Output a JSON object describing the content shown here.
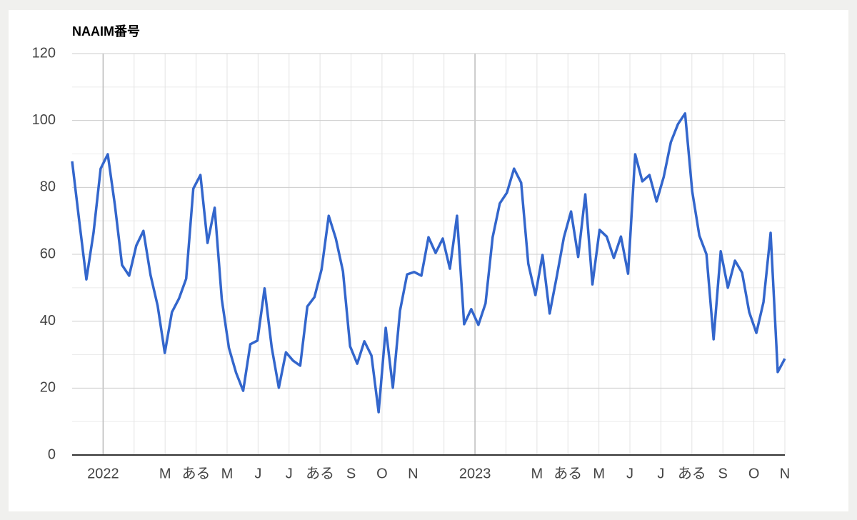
{
  "chart_data": {
    "type": "line",
    "title": "NAAIM番号",
    "x_labels": [
      "2022",
      null,
      "M",
      "ある",
      "M",
      "J",
      "J",
      "ある",
      "S",
      "O",
      "N",
      null,
      "2023",
      null,
      "M",
      "ある",
      "M",
      "J",
      "J",
      "ある",
      "S",
      "O",
      "N"
    ],
    "series": [
      {
        "name": "NAAIM",
        "color": "#3366cc",
        "values": [
          87.8,
          69.9,
          52.5,
          66.4,
          85.6,
          89.9,
          74.7,
          56.8,
          53.6,
          62.6,
          67.0,
          53.8,
          44.6,
          30.5,
          42.7,
          46.8,
          52.7,
          79.6,
          83.7,
          63.4,
          73.9,
          46.5,
          32.0,
          24.6,
          19.2,
          33.1,
          34.2,
          49.8,
          32.2,
          20.1,
          30.7,
          28.2,
          26.7,
          44.4,
          47.2,
          55.5,
          71.5,
          64.7,
          54.9,
          32.5,
          27.3,
          34.0,
          29.7,
          12.8,
          38.0,
          20.1,
          43.1,
          54.0,
          54.7,
          53.6,
          65.1,
          60.4,
          64.7,
          55.7,
          71.5,
          39.1,
          43.6,
          38.9,
          45.3,
          65.1,
          75.2,
          78.4,
          85.6,
          81.4,
          57.2,
          47.8,
          59.8,
          42.3,
          53.4,
          65.1,
          72.8,
          59.2,
          77.9,
          51.0,
          67.3,
          65.3,
          58.9,
          65.3,
          54.2,
          89.9,
          81.8,
          83.7,
          75.8,
          83.1,
          93.5,
          98.9,
          102.1,
          78.8,
          65.6,
          60.0,
          34.6,
          60.9,
          50.0,
          58.1,
          54.5,
          42.7,
          36.5,
          45.7,
          66.4,
          24.8,
          28.8
        ]
      }
    ],
    "ylim": [
      0,
      120
    ],
    "yticks": [
      0,
      20,
      40,
      60,
      80,
      100,
      120
    ],
    "grid": true
  }
}
